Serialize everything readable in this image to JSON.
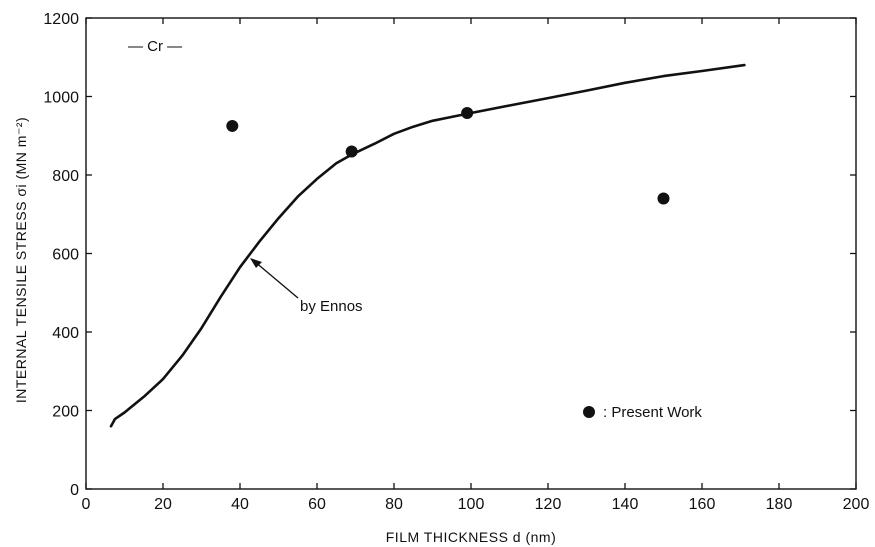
{
  "chart_data": {
    "type": "scatter",
    "xlabel": "FILM THICKNESS d (nm)",
    "ylabel": "INTERNAL TENSILE STRESS σi (MN m⁻²)",
    "xlim": [
      0,
      200
    ],
    "ylim": [
      0,
      1200
    ],
    "xticks": [
      0,
      20,
      40,
      60,
      80,
      100,
      120,
      140,
      160,
      180,
      200
    ],
    "yticks": [
      0,
      200,
      400,
      600,
      800,
      1000,
      1200
    ],
    "grid": false,
    "series": [
      {
        "name": "by Ennos",
        "kind": "line",
        "color": "#111111",
        "x": [
          6.5,
          7.5,
          10,
          15,
          20,
          25,
          30,
          35,
          40,
          45,
          50,
          55,
          60,
          65,
          69,
          75,
          80,
          85,
          90,
          95,
          100,
          110,
          120,
          130,
          140,
          150,
          160,
          171
        ],
        "y": [
          160,
          178,
          195,
          235,
          280,
          340,
          410,
          490,
          565,
          630,
          690,
          745,
          790,
          830,
          852,
          880,
          905,
          923,
          938,
          948,
          958,
          977,
          996,
          1015,
          1035,
          1052,
          1065,
          1080
        ]
      },
      {
        "name": "Present Work",
        "kind": "scatter",
        "color": "#111111",
        "x": [
          38,
          69,
          99,
          150
        ],
        "y": [
          925,
          860,
          958,
          740
        ]
      }
    ],
    "annotations": {
      "material": "— Cr —",
      "curve_label": "by Ennos",
      "legend_label": ": Present Work"
    }
  }
}
